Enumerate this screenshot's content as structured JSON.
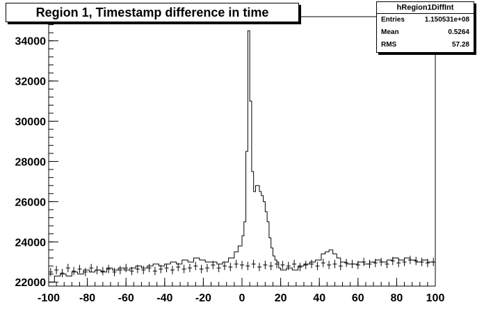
{
  "chart_data": {
    "type": "line",
    "title": "Region 1, Timestamp difference in time",
    "xlabel": "",
    "ylabel": "",
    "xlim": [
      -100,
      100
    ],
    "ylim": [
      21800,
      35200
    ],
    "x_ticks": [
      "-100",
      "-80",
      "-60",
      "-40",
      "-20",
      "0",
      "20",
      "40",
      "60",
      "80",
      "100"
    ],
    "y_ticks": [
      "22000",
      "24000",
      "26000",
      "28000",
      "30000",
      "32000",
      "34000"
    ],
    "stats": {
      "name": "hRegion1DiffInt",
      "entries_label": "Entries",
      "entries": "1.150531e+08",
      "mean_label": "Mean",
      "mean": "0.5264",
      "rms_label": "RMS",
      "rms": "57.28"
    },
    "series": [
      {
        "style": "histogram-step",
        "x": [
          -100,
          -97,
          -94,
          -91,
          -88,
          -85,
          -82,
          -79,
          -76,
          -73,
          -70,
          -67,
          -64,
          -61,
          -58,
          -55,
          -52,
          -49,
          -46,
          -43,
          -40,
          -37,
          -34,
          -31,
          -28,
          -25,
          -22,
          -19,
          -16,
          -13,
          -10,
          -7,
          -4,
          -2,
          0,
          1,
          2,
          3,
          4,
          5,
          6,
          7,
          8,
          9,
          10,
          11,
          12,
          13,
          14,
          15,
          16,
          17,
          18,
          19,
          20,
          23,
          26,
          29,
          32,
          35,
          38,
          41,
          43,
          45,
          47,
          49,
          51,
          54,
          57,
          60,
          63,
          66,
          69,
          72,
          75,
          78,
          81,
          84,
          87,
          90,
          93,
          96,
          99
        ],
        "y": [
          22000,
          22300,
          22400,
          22300,
          22500,
          22400,
          22600,
          22500,
          22600,
          22500,
          22700,
          22600,
          22700,
          22600,
          22700,
          22800,
          22700,
          22800,
          22900,
          22800,
          22900,
          23000,
          22900,
          23100,
          23000,
          23200,
          23100,
          23000,
          23000,
          22900,
          23000,
          23200,
          23500,
          23800,
          24300,
          25000,
          28500,
          34500,
          31000,
          27500,
          26500,
          26800,
          26800,
          26500,
          26300,
          26000,
          25500,
          25000,
          24200,
          23700,
          23300,
          23100,
          23000,
          22700,
          22600,
          22700,
          22600,
          22800,
          22900,
          23000,
          23100,
          23400,
          23500,
          23600,
          23400,
          23200,
          23000,
          22900,
          22900,
          23000,
          22900,
          23000,
          23100,
          23000,
          23100,
          23200,
          23100,
          23200,
          23100,
          23000,
          23100,
          23000,
          23000
        ]
      },
      {
        "style": "error-bars",
        "x": [
          -99,
          -96,
          -93,
          -90,
          -87,
          -84,
          -81,
          -78,
          -75,
          -72,
          -69,
          -66,
          -63,
          -60,
          -57,
          -54,
          -51,
          -48,
          -45,
          -42,
          -39,
          -36,
          -33,
          -30,
          -27,
          -24,
          -21,
          -18,
          -15,
          -12,
          -9,
          -6,
          -3,
          0,
          3,
          6,
          9,
          12,
          15,
          18,
          21,
          24,
          27,
          30,
          33,
          36,
          39,
          42,
          45,
          48,
          51,
          54,
          57,
          60,
          63,
          66,
          69,
          72,
          75,
          78,
          81,
          84,
          87,
          90,
          93,
          96,
          99
        ],
        "y": [
          22500,
          22600,
          22450,
          22700,
          22550,
          22650,
          22500,
          22700,
          22600,
          22550,
          22650,
          22500,
          22600,
          22700,
          22550,
          22650,
          22600,
          22700,
          22550,
          22650,
          22700,
          22600,
          22750,
          22650,
          22700,
          22800,
          22650,
          22700,
          22850,
          22700,
          22800,
          22750,
          22900,
          22850,
          22800,
          22900,
          22750,
          22850,
          22800,
          22900,
          22850,
          22800,
          22900,
          22750,
          22850,
          22900,
          22800,
          22950,
          22850,
          22900,
          22800,
          22950,
          22900,
          22850,
          23000,
          22900,
          22950,
          23000,
          22900,
          23050,
          22950,
          23000,
          23100,
          23050,
          23000,
          22950,
          23000
        ]
      }
    ]
  }
}
